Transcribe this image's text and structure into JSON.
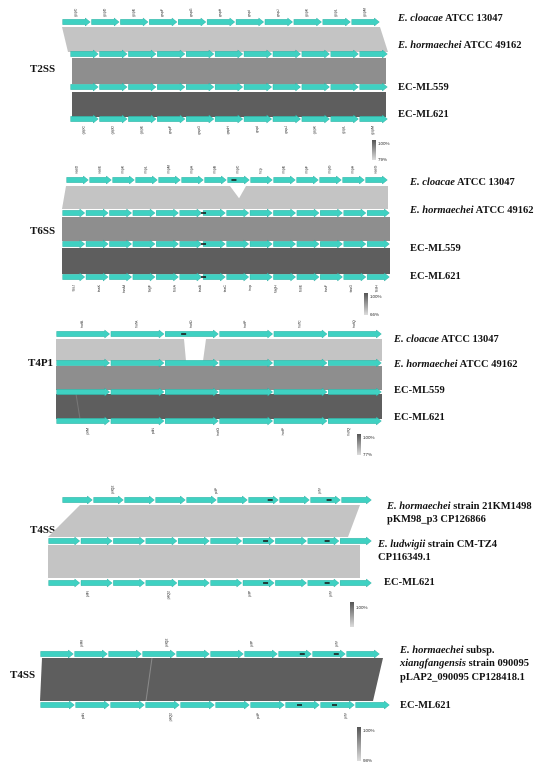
{
  "colors": {
    "arrow": "#3fd1c2",
    "arrow_stroke": "#2aa89c",
    "link_light": "#c4c4c4",
    "link_mid": "#8e8e8e",
    "link_dark": "#5e5e5e",
    "gap": "#1a1a1a"
  },
  "panels": [
    {
      "id": "t2ss",
      "label": "T2SS",
      "legend": {
        "max": "100%",
        "min": "79%"
      },
      "tracks": [
        {
          "name": [
            {
              "t": "E. cloacae",
              "italic": true
            },
            {
              "t": " ATCC 13047"
            }
          ],
          "gene_labels": [
            "gspC",
            "gspD",
            "gspE",
            "gspF",
            "gspG",
            "gspH",
            "gspI",
            "gspJ",
            "gspK",
            "gspL",
            "gspM"
          ]
        },
        {
          "name": [
            {
              "t": "E. hormaechei",
              "italic": true
            },
            {
              "t": " ATCC 49162"
            }
          ]
        },
        {
          "name": [
            {
              "t": "EC-ML559"
            }
          ]
        },
        {
          "name": [
            {
              "t": "EC-ML621"
            }
          ],
          "gene_labels": [
            "gspC",
            "gspD",
            "gspE",
            "gspF",
            "gspG",
            "gspH",
            "gspI",
            "gspJ",
            "gspK",
            "gspL",
            "gspM"
          ]
        }
      ],
      "links": [
        {
          "identity": 0.82
        },
        {
          "identity": 0.9
        },
        {
          "identity": 0.99
        }
      ]
    },
    {
      "id": "t6ss",
      "label": "T6SS",
      "legend": {
        "max": "100%",
        "min": "66%"
      },
      "tracks": [
        {
          "name": [
            {
              "t": "E. cloacae",
              "italic": true
            },
            {
              "t": " ATCC 13047"
            }
          ],
          "gene_labels": [
            "vasD",
            "vasE",
            "impK",
            "impL",
            "impM",
            "impA",
            "impB",
            "impC",
            "hcp",
            "impE",
            "impF",
            "impG",
            "impH",
            "vasG"
          ]
        },
        {
          "name": [
            {
              "t": "E. hormaechei",
              "italic": true
            },
            {
              "t": " ATCC 49162"
            }
          ]
        },
        {
          "name": [
            {
              "t": "EC-ML559"
            }
          ]
        },
        {
          "name": [
            {
              "t": "EC-ML621"
            }
          ],
          "gene_labels": [
            "tssJ",
            "tssK",
            "tssM",
            "tagF",
            "tssA",
            "tssB",
            "tssC",
            "hcp",
            "tagH",
            "tssE",
            "tssF",
            "tssG",
            "tssH"
          ]
        }
      ],
      "links": [
        {
          "identity": 0.78
        },
        {
          "identity": 0.9
        },
        {
          "identity": 0.99
        }
      ]
    },
    {
      "id": "t4p1",
      "label": "T4P1",
      "legend": {
        "max": "100%",
        "min": "77%"
      },
      "tracks": [
        {
          "name": [
            {
              "t": "E. cloacae",
              "italic": true
            },
            {
              "t": " ATCC 13047"
            }
          ],
          "gene_labels": [
            "hofB",
            "hofA",
            "hofD",
            "hofP",
            "hofC",
            "hofQ"
          ]
        },
        {
          "name": [
            {
              "t": "E. hormaechei",
              "italic": true
            },
            {
              "t": " ATCC 49162"
            }
          ]
        },
        {
          "name": [
            {
              "t": "EC-ML559"
            }
          ]
        },
        {
          "name": [
            {
              "t": "EC-ML621"
            }
          ],
          "gene_labels": [
            "pilM",
            "pilN",
            "hofO",
            "hofP",
            "hofQ"
          ]
        }
      ],
      "links": [
        {
          "identity": 0.8
        },
        {
          "identity": 0.9
        },
        {
          "identity": 0.99
        }
      ]
    },
    {
      "id": "t4ss-a",
      "label": "T4SS",
      "legend": {
        "max": "100%"
      },
      "tracks": [
        {
          "name": [
            {
              "t": "E. hormaechei",
              "italic": true
            },
            {
              "t": " strain 21KM1498"
            }
          ],
          "name2": [
            {
              "t": "pKM98_p3  CP126866"
            }
          ],
          "gene_labels": [
            "pilQ2",
            "pilP",
            "pilV"
          ]
        },
        {
          "name": [
            {
              "t": "E. ludwigii ",
              "italic": true
            },
            {
              "t": " strain CM-TZ4"
            }
          ],
          "name2": [
            {
              "t": "CP116349.1"
            }
          ]
        },
        {
          "name": [
            {
              "t": "EC-ML621"
            }
          ],
          "gene_labels": [
            "pilN",
            "pilQ2",
            "pilP",
            "pilV"
          ]
        }
      ],
      "links": [
        {
          "identity": 0.8
        },
        {
          "identity": 0.8
        }
      ]
    },
    {
      "id": "t4ss-b",
      "label": "T4SS",
      "legend": {
        "max": "100%",
        "min": "98%"
      },
      "tracks": [
        {
          "name": [
            {
              "t": "E. hormaechei",
              "italic": true
            },
            {
              "t": " subsp."
            }
          ],
          "name2": [
            {
              "t": "xiangfangensis",
              "italic": true
            },
            {
              "t": " strain 090095"
            }
          ],
          "name3": [
            {
              "t": "pLAP2_090095 CP128418.1"
            }
          ],
          "gene_labels": [
            "pilM",
            "pilQ2",
            "pilP",
            "pilV"
          ]
        },
        {
          "name": [
            {
              "t": "EC-ML621"
            }
          ],
          "gene_labels": [
            "pilN",
            "pilQ2",
            "pilP",
            "pilV"
          ]
        }
      ],
      "links": [
        {
          "identity": 0.99
        }
      ]
    }
  ]
}
